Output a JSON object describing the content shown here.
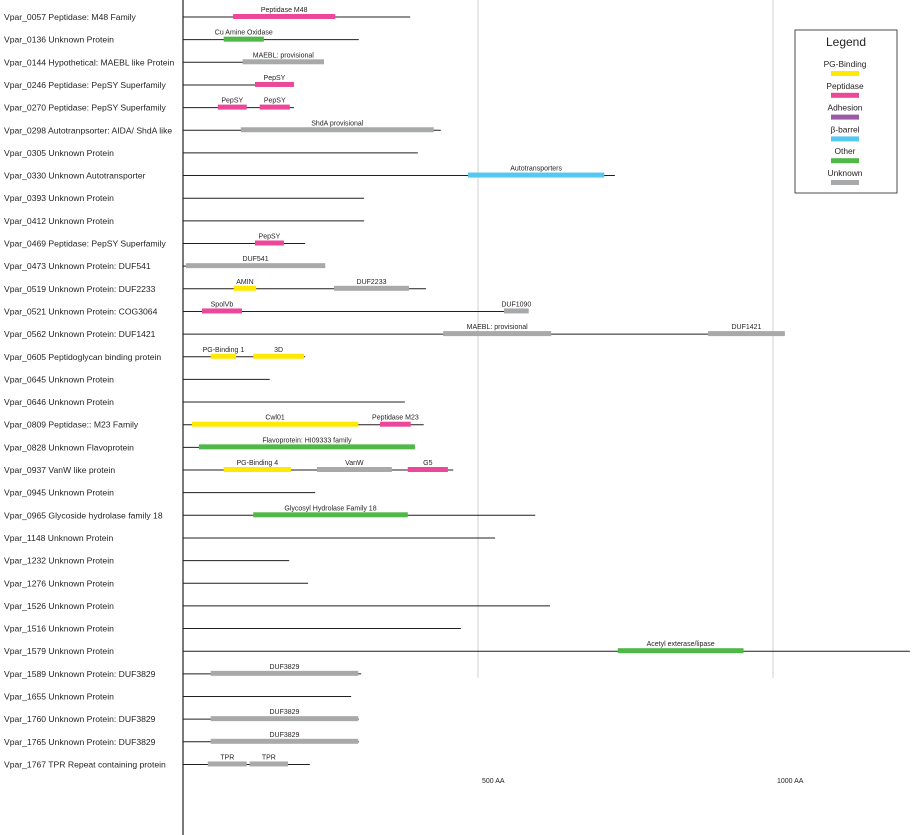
{
  "legend": {
    "title": "Legend",
    "items": [
      {
        "label": "PG-Binding",
        "color": "#ffe900"
      },
      {
        "label": "Peptidase",
        "color": "#ec4798"
      },
      {
        "label": "Adhesion",
        "color": "#9c5ba7"
      },
      {
        "label": "β-barrel",
        "color": "#55c8ef"
      },
      {
        "label": "Other",
        "color": "#4fb848"
      },
      {
        "label": "Unknown",
        "color": "#a8a9ab"
      }
    ]
  },
  "scale": [
    {
      "label": "500 AA",
      "aa": 500
    },
    {
      "label": "1000 AA",
      "aa": 1000
    }
  ],
  "proteins": [
    {
      "label": "Vpar_0057  Peptidase: M48 Family",
      "length": 385,
      "domains": [
        {
          "name": "Peptidase M48",
          "start": 85,
          "end": 258,
          "type": "Peptidase"
        }
      ]
    },
    {
      "label": "Vpar_0136 Unknown  Protein",
      "length": 298,
      "domains": [
        {
          "name": "Cu Amine Oxidase",
          "start": 69,
          "end": 137,
          "type": "Other"
        }
      ]
    },
    {
      "label": "Vpar_0144  Hypothetical: MAEBL like Protein",
      "length": 238,
      "domains": [
        {
          "name": "MAEBL: provisional",
          "start": 101,
          "end": 239,
          "type": "Unknown"
        }
      ]
    },
    {
      "label": "Vpar_0246  Peptidase: PepSY Superfamily",
      "length": 188,
      "domains": [
        {
          "name": "PepSY",
          "start": 122,
          "end": 188,
          "type": "Peptidase"
        }
      ]
    },
    {
      "label": "Vpar_0270  Peptidase: PepSY Superfamily",
      "length": 188,
      "domains": [
        {
          "name": "PepSY",
          "start": 59,
          "end": 108,
          "type": "Peptidase"
        },
        {
          "name": "PepSY",
          "start": 130,
          "end": 181,
          "type": "Peptidase"
        }
      ]
    },
    {
      "label": "Vpar_0298  Autotranpsorter: AIDA/ ShdA like",
      "length": 437,
      "domains": [
        {
          "name": "ShdA provisional",
          "start": 98,
          "end": 425,
          "type": "Unknown"
        }
      ]
    },
    {
      "label": "Vpar_0305  Unknown Protein",
      "length": 398,
      "domains": []
    },
    {
      "label": "Vpar_0330  Unknown Autotransporter",
      "length": 732,
      "domains": [
        {
          "name": "Autotransporters",
          "start": 483,
          "end": 714,
          "type": "β-barrel"
        }
      ]
    },
    {
      "label": "Vpar_0393  Unknown Protein",
      "length": 307,
      "domains": []
    },
    {
      "label": "Vpar_0412  Unknown Protein",
      "length": 307,
      "domains": []
    },
    {
      "label": "Vpar_0469  Peptidase: PepSY Superfamily",
      "length": 207,
      "domains": [
        {
          "name": "PepSY",
          "start": 122,
          "end": 171,
          "type": "Peptidase"
        }
      ]
    },
    {
      "label": "Vpar_0473  Unknown Protein: DUF541",
      "length": 241,
      "domains": [
        {
          "name": "DUF541",
          "start": 5,
          "end": 241,
          "type": "Unknown"
        }
      ]
    },
    {
      "label": "Vpar_0519  Unknown Protein: DUF2233",
      "length": 412,
      "domains": [
        {
          "name": "AMIN",
          "start": 86,
          "end": 124,
          "type": "PG-Binding"
        },
        {
          "name": "DUF2233",
          "start": 256,
          "end": 383,
          "type": "Unknown"
        }
      ]
    },
    {
      "label": "Vpar_0521  Unknown Protein: COG3064",
      "length": 576,
      "domains": [
        {
          "name": "SpolVb",
          "start": 32,
          "end": 100,
          "type": "Peptidase"
        },
        {
          "name": "DUF1090",
          "start": 544,
          "end": 586,
          "type": "Unknown"
        }
      ]
    },
    {
      "label": "Vpar_0562  Unknown Protein: DUF1421",
      "length": 1020,
      "domains": [
        {
          "name": "MAEBL: provisional",
          "start": 441,
          "end": 624,
          "type": "Unknown"
        },
        {
          "name": "DUF1421",
          "start": 890,
          "end": 1020,
          "type": "Unknown"
        }
      ]
    },
    {
      "label": "Vpar_0605  Peptidoglycan binding protein",
      "length": 207,
      "domains": [
        {
          "name": "PG-Binding 1",
          "start": 47,
          "end": 90,
          "type": "PG-Binding"
        },
        {
          "name": "3D",
          "start": 119,
          "end": 205,
          "type": "PG-Binding"
        }
      ]
    },
    {
      "label": "Vpar_0645  Unknown Protein",
      "length": 147,
      "domains": []
    },
    {
      "label": "Vpar_0646  Unknown Protein",
      "length": 376,
      "domains": []
    },
    {
      "label": "Vpar_0809  Peptidase:: M23 Family",
      "length": 408,
      "domains": [
        {
          "name": "Cwl01",
          "start": 15,
          "end": 297,
          "type": "PG-Binding"
        },
        {
          "name": "Peptidase M23",
          "start": 334,
          "end": 386,
          "type": "Peptidase"
        }
      ]
    },
    {
      "label": "Vpar_0828  Unknown Flavoprotein",
      "length": 393,
      "domains": [
        {
          "name": "Flavoprotein: HI09333 family",
          "start": 27,
          "end": 393,
          "type": "Other"
        }
      ]
    },
    {
      "label": "Vpar_0937  VanW like protein",
      "length": 458,
      "domains": [
        {
          "name": "PG-Binding 4",
          "start": 69,
          "end": 183,
          "type": "PG-Binding"
        },
        {
          "name": "VanW",
          "start": 227,
          "end": 354,
          "type": "Unknown"
        },
        {
          "name": "G5",
          "start": 381,
          "end": 449,
          "type": "Peptidase"
        }
      ]
    },
    {
      "label": "Vpar_0945  Unknown Protein",
      "length": 224,
      "domains": []
    },
    {
      "label": "Vpar_0965    Glycoside hydrolase family 18",
      "length": 597,
      "domains": [
        {
          "name": "Glycosyl Hydrolase Family 18",
          "start": 119,
          "end": 381,
          "type": "Other"
        }
      ]
    },
    {
      "label": "Vpar_1148  Unknown Protein",
      "length": 529,
      "domains": []
    },
    {
      "label": "Vpar_1232  Unknown Protein",
      "length": 180,
      "domains": []
    },
    {
      "label": "Vpar_1276  Unknown Protein",
      "length": 212,
      "domains": []
    },
    {
      "label": "Vpar_1526  Unknown Protein",
      "length": 622,
      "domains": []
    },
    {
      "label": "Vpar_1516  Unknown Protein",
      "length": 471,
      "domains": []
    },
    {
      "label": "Vpar_1579  Unknown Protein",
      "length": 1232,
      "domains": [
        {
          "name": "Acetyl exterase/lipase",
          "start": 737,
          "end": 950,
          "type": "Other"
        }
      ]
    },
    {
      "label": "Vpar_1589  Unknown Protein: DUF3829",
      "length": 302,
      "domains": [
        {
          "name": "DUF3829",
          "start": 47,
          "end": 297,
          "type": "Unknown"
        }
      ]
    },
    {
      "label": "Vpar_1655  Unknown Protein",
      "length": 285,
      "domains": []
    },
    {
      "label": "Vpar_1760  Unknown Protein: DUF3829",
      "length": 298,
      "domains": [
        {
          "name": "DUF3829",
          "start": 47,
          "end": 297,
          "type": "Unknown"
        }
      ]
    },
    {
      "label": "Vpar_1765  Unknown Protein: DUF3829",
      "length": 298,
      "domains": [
        {
          "name": "DUF3829",
          "start": 47,
          "end": 297,
          "type": "Unknown"
        }
      ]
    },
    {
      "label": "Vpar_1767  TPR Repeat containing protein",
      "length": 215,
      "domains": [
        {
          "name": "TPR",
          "start": 42,
          "end": 108,
          "type": "Unknown"
        },
        {
          "name": "TPR",
          "start": 113,
          "end": 178,
          "type": "Unknown"
        }
      ]
    }
  ]
}
